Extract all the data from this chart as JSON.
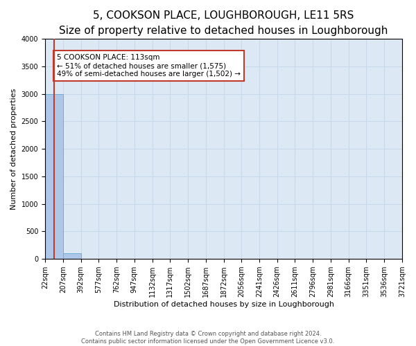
{
  "title": "5, COOKSON PLACE, LOUGHBOROUGH, LE11 5RS",
  "subtitle": "Size of property relative to detached houses in Loughborough",
  "xlabel": "Distribution of detached houses by size in Loughborough",
  "ylabel": "Number of detached properties",
  "footer_line1": "Contains HM Land Registry data © Crown copyright and database right 2024.",
  "footer_line2": "Contains public sector information licensed under the Open Government Licence v3.0.",
  "bin_edges": [
    22,
    207,
    392,
    577,
    762,
    947,
    1132,
    1317,
    1502,
    1687,
    1872,
    2056,
    2241,
    2426,
    2611,
    2796,
    2981,
    3166,
    3351,
    3536,
    3721
  ],
  "bar_heights": [
    3000,
    100,
    0,
    0,
    0,
    0,
    0,
    0,
    0,
    0,
    0,
    0,
    0,
    0,
    0,
    0,
    0,
    0,
    0,
    0
  ],
  "bar_color": "#aec6e8",
  "bar_edge_color": "#6aaed6",
  "property_size": 113,
  "property_line_color": "#c0392b",
  "annotation_text": "5 COOKSON PLACE: 113sqm\n← 51% of detached houses are smaller (1,575)\n49% of semi-detached houses are larger (1,502) →",
  "annotation_box_color": "#c0392b",
  "annotation_text_color": "#000000",
  "annotation_bg_color": "#ffffff",
  "ylim": [
    0,
    4000
  ],
  "yticks": [
    0,
    500,
    1000,
    1500,
    2000,
    2500,
    3000,
    3500,
    4000
  ],
  "grid_color": "#c8d8e8",
  "background_color": "#dce9f5",
  "title_fontsize": 11,
  "subtitle_fontsize": 9,
  "axis_label_fontsize": 8,
  "tick_fontsize": 7
}
